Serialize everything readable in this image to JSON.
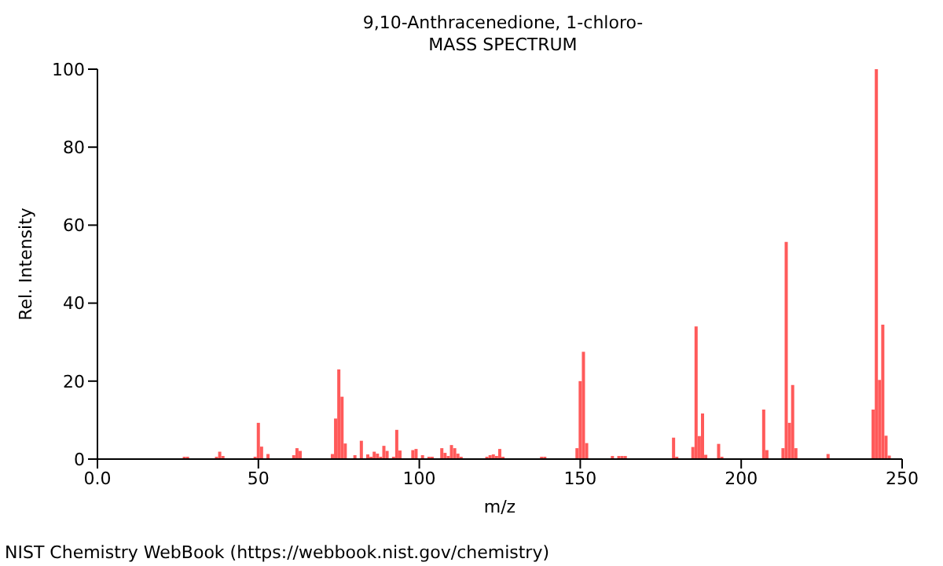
{
  "chart_data": {
    "type": "bar",
    "title": "9,10-Anthracenedione, 1-chloro-",
    "subtitle": "MASS SPECTRUM",
    "xlabel": "m/z",
    "ylabel": "Rel. Intensity",
    "color": "#ff5a5a",
    "x": [
      27,
      28,
      37,
      38,
      39,
      49,
      50,
      51,
      53,
      61,
      62,
      63,
      73,
      74,
      75,
      76,
      77,
      80,
      82,
      84,
      85,
      86,
      87,
      88,
      89,
      90,
      92,
      93,
      94,
      98,
      99,
      101,
      103,
      104,
      107,
      108,
      109,
      110,
      111,
      112,
      113,
      121,
      122,
      123,
      124,
      125,
      126,
      138,
      139,
      149,
      150,
      151,
      152,
      160,
      162,
      163,
      164,
      179,
      180,
      185,
      186,
      187,
      188,
      189,
      193,
      194,
      207,
      208,
      213,
      214,
      215,
      216,
      217,
      227,
      241,
      242,
      243,
      244,
      245,
      246
    ],
    "values": [
      0.6,
      0.6,
      0.6,
      1.9,
      0.8,
      0.6,
      9.3,
      3.2,
      1.3,
      1,
      2.8,
      2.1,
      1.3,
      10.4,
      23,
      16,
      4,
      1,
      4.7,
      1.2,
      0.6,
      1.9,
      1.4,
      0.6,
      3.4,
      2.1,
      0.6,
      7.5,
      2.2,
      2.3,
      2.6,
      1,
      0.6,
      0.6,
      2.8,
      1.6,
      0.8,
      3.6,
      2.8,
      1.4,
      0.6,
      0.6,
      1,
      1.2,
      0.8,
      2.6,
      0.6,
      0.6,
      0.6,
      2.8,
      20,
      27.5,
      4.1,
      0.8,
      0.8,
      0.8,
      0.8,
      5.5,
      0.6,
      3.1,
      34,
      5.9,
      11.7,
      1.1,
      3.9,
      0.6,
      12.7,
      2.3,
      2.8,
      55.7,
      9.3,
      19,
      2.8,
      1.3,
      12.7,
      100,
      20.3,
      34.5,
      6,
      0.9
    ],
    "xlim": [
      0,
      250
    ],
    "xticks": [
      {
        "value": 0,
        "label": "0.0"
      },
      50,
      100,
      150,
      200,
      250
    ],
    "ylim": [
      0,
      100
    ],
    "yticks": [
      0,
      20,
      40,
      60,
      80,
      100
    ],
    "grid": false,
    "legend": false,
    "annotations": [
      "NIST Chemistry WebBook (https://webbook.nist.gov/chemistry)"
    ]
  }
}
